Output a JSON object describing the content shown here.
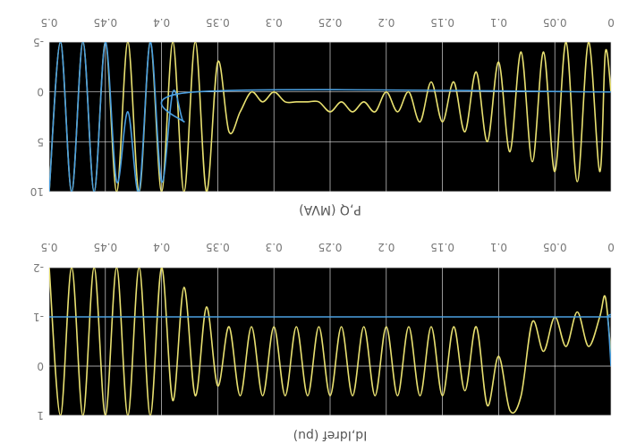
{
  "chart_data": [
    {
      "type": "line",
      "title": "",
      "xlabel": "P,Q (MVA)",
      "ylabel": "",
      "xlim": [
        0,
        0.5
      ],
      "ylim": [
        -5,
        10
      ],
      "x_ticks": [
        "0",
        "0.05",
        "0.1",
        "0.15",
        "0.2",
        "0.25",
        "0.3",
        "0.35",
        "0.4",
        "0.45",
        "0.5"
      ],
      "y_ticks": [
        "-5",
        "0",
        "5",
        "10"
      ],
      "grid": true,
      "background": "#000000",
      "series": [
        {
          "color": "#e8e070",
          "x": [
            0,
            0.005,
            0.01,
            0.02,
            0.03,
            0.04,
            0.05,
            0.06,
            0.07,
            0.08,
            0.09,
            0.1,
            0.11,
            0.12,
            0.13,
            0.14,
            0.15,
            0.16,
            0.17,
            0.18,
            0.19,
            0.2,
            0.21,
            0.22,
            0.23,
            0.24,
            0.25,
            0.26,
            0.27,
            0.28,
            0.29,
            0.3,
            0.31,
            0.32,
            0.33,
            0.34,
            0.35,
            0.36,
            0.37,
            0.38,
            0.39,
            0.4,
            0.41,
            0.42,
            0.43,
            0.44,
            0.45,
            0.46,
            0.47,
            0.48,
            0.49,
            0.5
          ],
          "y": [
            0,
            -4,
            8,
            -5,
            9,
            -5,
            8,
            -4,
            7,
            -4,
            6,
            -3,
            5,
            -2,
            4,
            -1,
            3,
            -1,
            3,
            0,
            2,
            0,
            2,
            1,
            2,
            1,
            2,
            1,
            1,
            1,
            1,
            0,
            1,
            0,
            2,
            4,
            -3,
            10,
            -5,
            10,
            -5,
            10,
            -5,
            10,
            -5,
            10,
            -5,
            10,
            -5,
            10,
            -5,
            10
          ]
        },
        {
          "color": "#4a9fe0",
          "x": [
            0,
            0.37,
            0.38,
            0.39,
            0.4,
            0.41,
            0.42,
            0.43,
            0.44,
            0.45,
            0.46,
            0.47,
            0.48,
            0.49,
            0.5
          ],
          "y": [
            0,
            0,
            3,
            0,
            9,
            -5,
            10,
            2,
            9,
            -5,
            10,
            -5,
            10,
            -5,
            10
          ]
        }
      ]
    },
    {
      "type": "line",
      "title": "",
      "xlabel": "Id,Idref (pu)",
      "ylabel": "",
      "xlim": [
        0,
        0.5
      ],
      "ylim": [
        -2,
        1
      ],
      "x_ticks": [
        "0",
        "0.05",
        "0.1",
        "0.15",
        "0.2",
        "0.25",
        "0.3",
        "0.35",
        "0.4",
        "0.45",
        "0.5"
      ],
      "y_ticks": [
        "-2",
        "-1",
        "0",
        "1"
      ],
      "grid": true,
      "background": "#000000",
      "series": [
        {
          "color": "#e8e070",
          "x": [
            0,
            0.005,
            0.01,
            0.02,
            0.03,
            0.04,
            0.05,
            0.06,
            0.07,
            0.08,
            0.09,
            0.1,
            0.11,
            0.12,
            0.13,
            0.14,
            0.15,
            0.16,
            0.17,
            0.18,
            0.19,
            0.2,
            0.21,
            0.22,
            0.23,
            0.24,
            0.25,
            0.26,
            0.27,
            0.28,
            0.29,
            0.3,
            0.31,
            0.32,
            0.33,
            0.34,
            0.35,
            0.36,
            0.37,
            0.38,
            0.39,
            0.4,
            0.41,
            0.42,
            0.43,
            0.44,
            0.45,
            0.46,
            0.47,
            0.48,
            0.49,
            0.5
          ],
          "y": [
            -0.2,
            -1.4,
            -1.0,
            -0.4,
            -1.1,
            -0.4,
            -1.0,
            -0.3,
            -0.9,
            0.6,
            0.9,
            -0.2,
            0.8,
            -0.8,
            0.5,
            -0.8,
            0.6,
            -0.8,
            0.6,
            -0.8,
            0.6,
            -0.8,
            0.6,
            -0.8,
            0.6,
            -0.8,
            0.6,
            -0.8,
            0.6,
            -0.8,
            0.6,
            -0.8,
            0.6,
            -0.8,
            0.6,
            -0.8,
            0.4,
            -1.2,
            0.6,
            -1.6,
            0.7,
            -2,
            1,
            -2,
            1,
            -2,
            1,
            -2,
            1,
            -2,
            1,
            -2
          ]
        },
        {
          "color": "#4a9fe0",
          "x": [
            0,
            0.003,
            0.006,
            0.5
          ],
          "y": [
            0,
            -1,
            -1,
            -1
          ]
        }
      ]
    }
  ]
}
